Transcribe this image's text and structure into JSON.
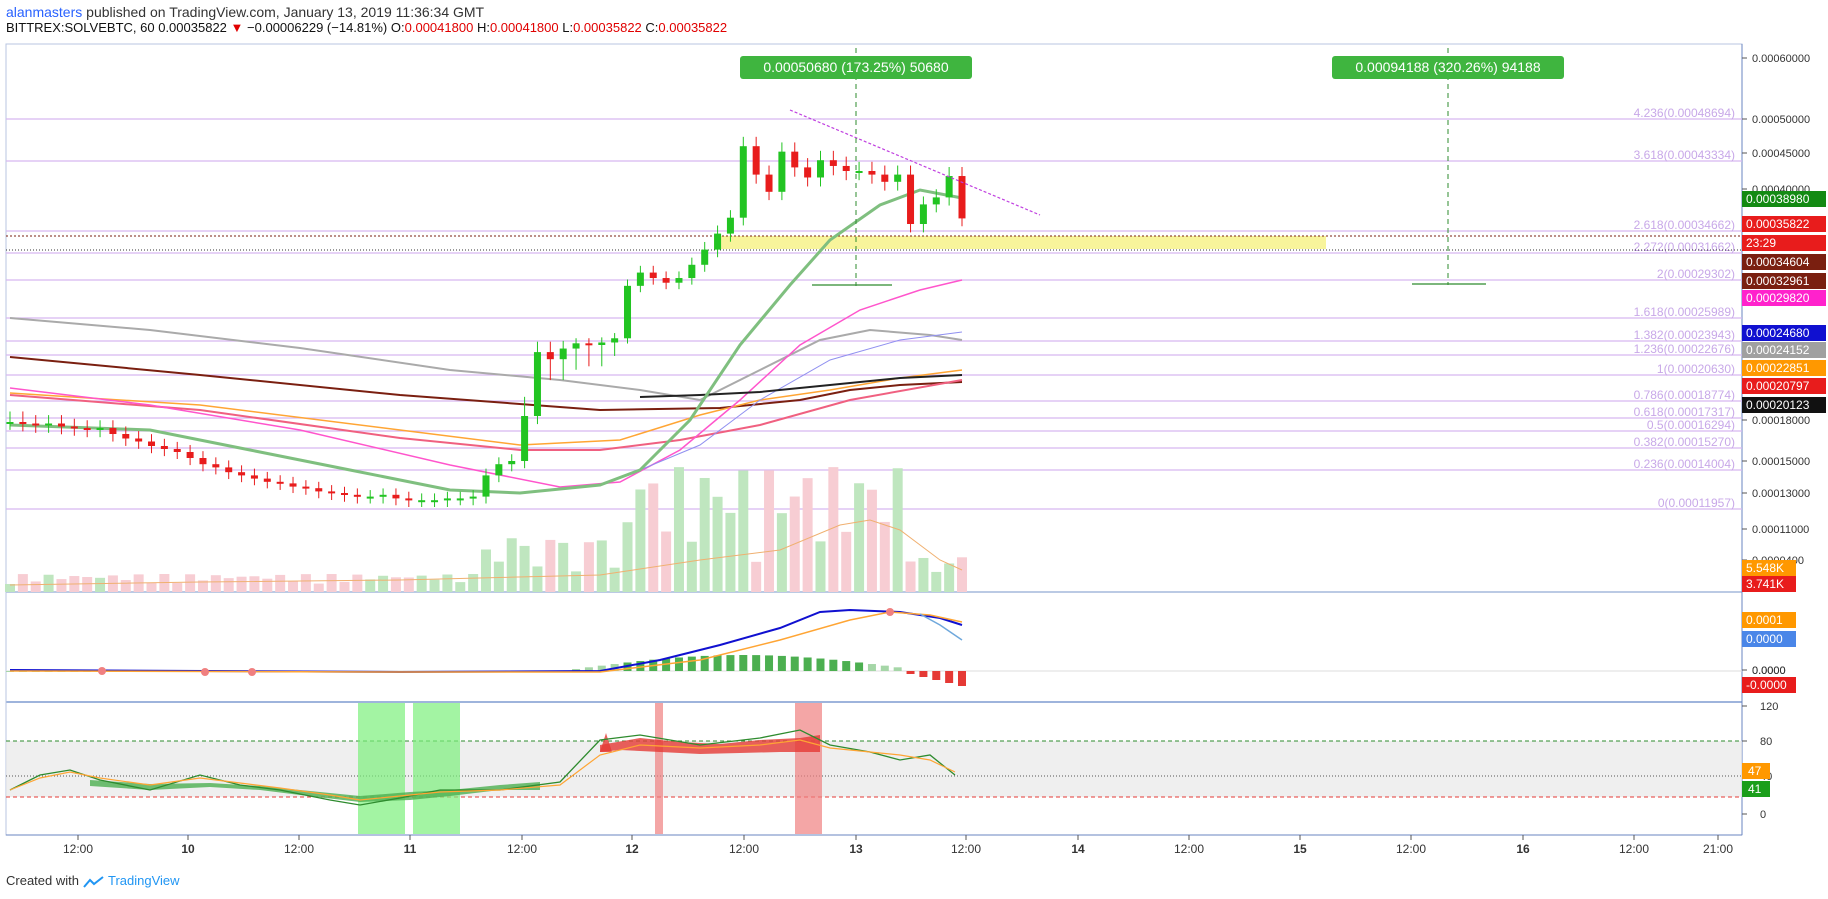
{
  "header": {
    "author": "alanmasters",
    "published": "published on TradingView.com, January 13, 2019 11:36:34 GMT",
    "symbol": "BITTREX:SOLVEBTC, 60",
    "price": "0.00035822",
    "change": "−0.00006229 (−14.81%)",
    "o_label": "O:",
    "o": "0.00041800",
    "h_label": "H:",
    "h": "0.00041800",
    "l_label": "L:",
    "l": "0.00035822",
    "c_label": "C:",
    "c": "0.00035822"
  },
  "footer": {
    "created_with": "Created with",
    "brand": "TradingView"
  },
  "colors": {
    "up": "#22c422",
    "down": "#e81c1c",
    "fib": "#d7b7f0",
    "zone": "#f7f28a",
    "ema_green": "#7fbf7f",
    "pink": "#ff55cc",
    "orange": "#ffa534",
    "black": "#222222",
    "grey": "#aaaaaa",
    "red_ma": "#f06080",
    "blue": "#1010d0"
  },
  "chart_data": {
    "type": "line",
    "title": "SOLVEBTC, 60",
    "x_ticks": [
      "12:00",
      "10",
      "12:00",
      "11",
      "12:00",
      "12",
      "12:00",
      "13",
      "12:00",
      "14",
      "12:00",
      "15",
      "12:00",
      "16",
      "12:00",
      "21:00"
    ],
    "y_ticks": [
      "0.00060000",
      "0.00050000",
      "0.00045000",
      "0.00040000",
      "0.00018000",
      "0.00015000",
      "0.00013000",
      "0.00011000",
      "0.0000400",
      "0.0000"
    ],
    "ylim": [
      0,
      0.0006
    ],
    "price_labels": [
      {
        "value": "0.00038980",
        "color": "#138a13"
      },
      {
        "value": "0.00035822",
        "color": "#e81c1c"
      },
      {
        "value": "23:29",
        "color": "#e81c1c"
      },
      {
        "value": "0.00034604",
        "color": "#7a1f10"
      },
      {
        "value": "0.00032961",
        "color": "#7a1f10"
      },
      {
        "value": "0.00029820",
        "color": "#ff22cc"
      },
      {
        "value": "0.00024680",
        "color": "#1010d0"
      },
      {
        "value": "0.00024152",
        "color": "#a0a0a0"
      },
      {
        "value": "0.00022851",
        "color": "#ff9800"
      },
      {
        "value": "0.00020797",
        "color": "#e81c1c"
      },
      {
        "value": "0.00020123",
        "color": "#111111"
      }
    ],
    "fib_levels": [
      {
        "label": "4.236(0.00048694)"
      },
      {
        "label": "3.618(0.00043334)"
      },
      {
        "label": "2.618(0.00034662)"
      },
      {
        "label": "2.272(0.00031662)"
      },
      {
        "label": "2(0.00029302)"
      },
      {
        "label": "1.618(0.00025989)"
      },
      {
        "label": "1.382(0.00023943)"
      },
      {
        "label": "1.236(0.00022676)"
      },
      {
        "label": "1(0.00020630)"
      },
      {
        "label": "0.786(0.00018774)"
      },
      {
        "label": "0.618(0.00017317)"
      },
      {
        "label": "0.5(0.00016294)"
      },
      {
        "label": "0.382(0.00015270)"
      },
      {
        "label": "0.236(0.00014004)"
      },
      {
        "label": "0(0.00011957)"
      }
    ],
    "annotations": [
      {
        "text": "0.00050680 (173.25%) 50680"
      },
      {
        "text": "0.00094188 (320.26%) 94188"
      }
    ],
    "close": [
      0.000176,
      0.000175,
      0.000174,
      0.000175,
      0.000173,
      0.000172,
      0.000171,
      0.000172,
      0.000168,
      0.000165,
      0.000163,
      0.00016,
      0.000158,
      0.000156,
      0.000152,
      0.000148,
      0.000146,
      0.000143,
      0.000141,
      0.000139,
      0.000137,
      0.000136,
      0.000134,
      0.000133,
      0.000131,
      0.00013,
      0.000129,
      0.000128,
      0.000128,
      0.000129,
      0.000127,
      0.000126,
      0.000126,
      0.000126,
      0.000127,
      0.000127,
      0.000128,
      0.000141,
      0.000148,
      0.00015,
      0.00018,
      0.000198,
      0.000196,
      0.000199,
      0.000202,
      0.0002,
      0.000203,
      0.000208,
      0.000272,
      0.000289,
      0.000282,
      0.000276,
      0.000282,
      0.000299,
      0.000318,
      0.000338,
      0.000359,
      0.00046,
      0.00042,
      0.000396,
      0.000452,
      0.00043,
      0.000416,
      0.00044,
      0.000432,
      0.000425,
      0.000425,
      0.00042,
      0.00041,
      0.00042,
      0.00035,
      0.000378,
      0.000388,
      0.000418,
      0.000358
    ],
    "volume": {
      "labels": [
        "5.548K",
        "3.741K"
      ]
    },
    "macd": {
      "labels": [
        "0.0001",
        "0.0000",
        "0.0000",
        "-0.0000"
      ]
    },
    "rsi": {
      "y_ticks": [
        "120",
        "80",
        "40",
        "0"
      ],
      "labels": [
        "47",
        "41"
      ]
    }
  }
}
